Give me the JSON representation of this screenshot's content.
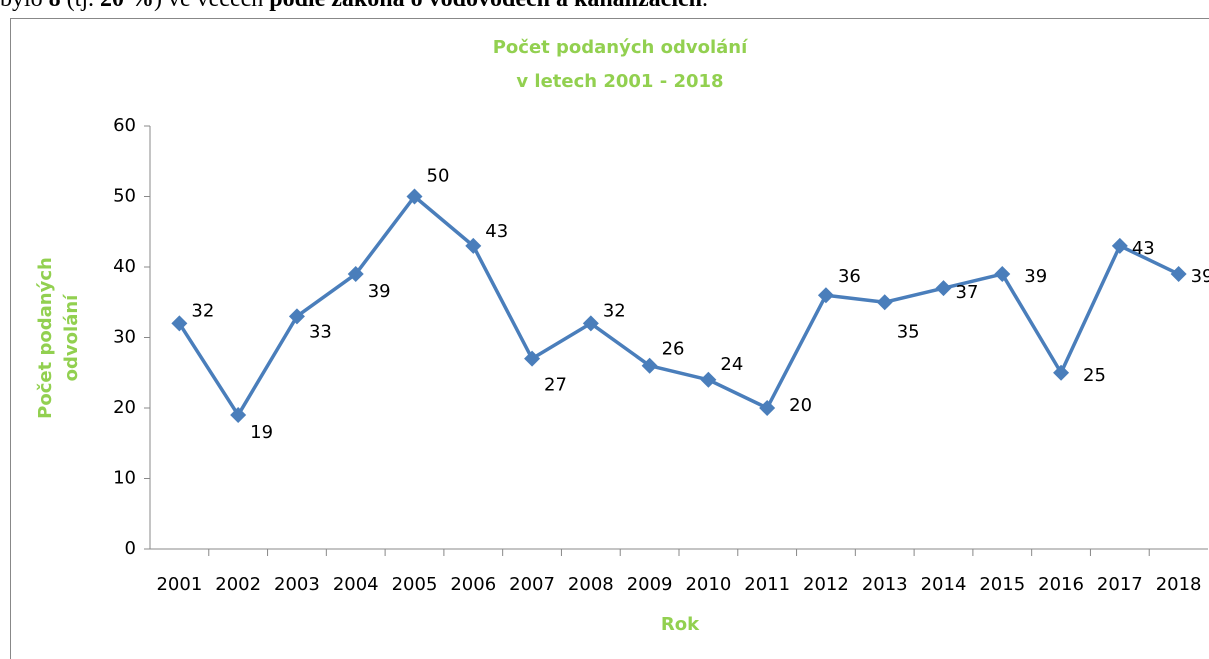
{
  "document_text": [
    {
      "text": "bylo ",
      "bold": false
    },
    {
      "text": "8",
      "bold": true
    },
    {
      "text": " (tj. ",
      "bold": false
    },
    {
      "text": "20 %",
      "bold": true
    },
    {
      "text": ") ve věcech ",
      "bold": false
    },
    {
      "text": "podle zákona o vodovodech a kanalizacích",
      "bold": true
    },
    {
      "text": ".",
      "bold": false
    }
  ],
  "chart_data": {
    "type": "line",
    "title": [
      "Počet podaných odvolání",
      "v letech 2001 - 2018"
    ],
    "x_label": "Rok",
    "y_label": [
      "Počet podaných",
      "odvolání"
    ],
    "categories": [
      "2001",
      "2002",
      "2003",
      "2004",
      "2005",
      "2006",
      "2007",
      "2008",
      "2009",
      "2010",
      "2011",
      "2012",
      "2013",
      "2014",
      "2015",
      "2016",
      "2017",
      "2018"
    ],
    "series": [
      {
        "name": "Počet podaných odvolání",
        "color": "#4a7ebb",
        "values": [
          32,
          19,
          33,
          39,
          50,
          43,
          27,
          32,
          26,
          24,
          20,
          36,
          35,
          37,
          39,
          25,
          43,
          39
        ]
      }
    ],
    "ylim": [
      0,
      60
    ],
    "yticks": [
      0,
      10,
      20,
      30,
      40,
      50,
      60
    ],
    "grid": false
  }
}
